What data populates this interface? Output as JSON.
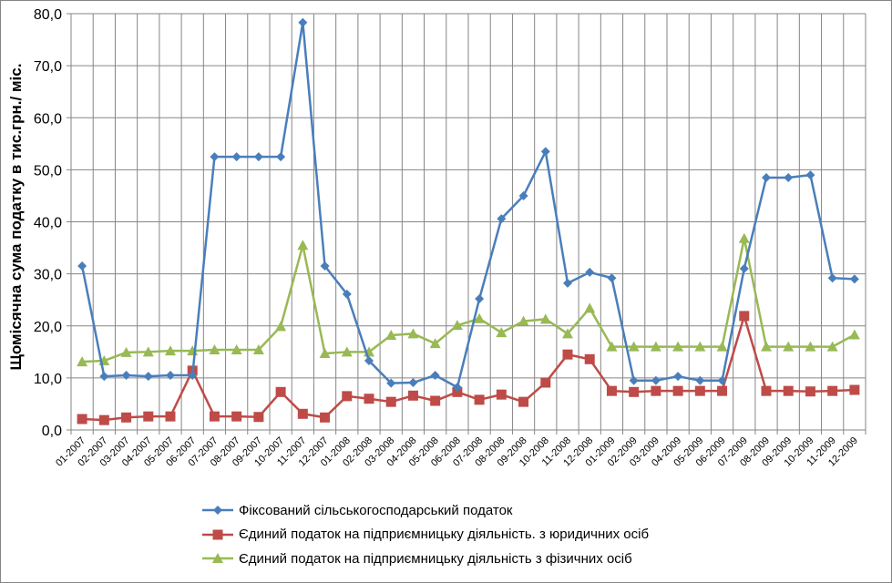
{
  "chart_data": {
    "type": "line",
    "title": "",
    "xlabel": "",
    "ylabel": "Щомісячна сума податку  в тис.грн./ міс.",
    "ylim": [
      0,
      80
    ],
    "yticks": [
      "0,0",
      "10,0",
      "20,0",
      "30,0",
      "40,0",
      "50,0",
      "60,0",
      "70,0",
      "80,0"
    ],
    "grid": true,
    "legend_position": "bottom",
    "categories": [
      "01-2007",
      "02-2007",
      "03-2007",
      "04-2007",
      "05-2007",
      "06-2007",
      "07-2007",
      "08-2007",
      "09-2007",
      "10-2007",
      "11-2007",
      "12-2007",
      "01-2008",
      "02-2008",
      "03-2008",
      "04-2008",
      "05-2008",
      "06-2008",
      "07-2008",
      "08-2008",
      "09-2008",
      "10-2008",
      "11-2008",
      "12-2008",
      "01-2009",
      "02-2009",
      "03-2009",
      "04-2009",
      "05-2009",
      "06-2009",
      "07-2009",
      "08-2009",
      "09-2009",
      "10-2009",
      "11-2009",
      "12-2009"
    ],
    "series": [
      {
        "name": "Фіксований сільськогосподарський податок",
        "color": "#4A7EBB",
        "marker": "diamond",
        "values": [
          31.5,
          10.3,
          10.5,
          10.3,
          10.5,
          10.5,
          52.5,
          52.5,
          52.5,
          52.5,
          78.3,
          31.5,
          26.1,
          13.3,
          9.0,
          9.1,
          10.5,
          8.2,
          25.2,
          40.6,
          45.0,
          53.5,
          28.2,
          30.3,
          29.2,
          9.5,
          9.5,
          10.3,
          9.5,
          9.5,
          31.0,
          48.5,
          48.5,
          49.0,
          29.2,
          29.0
        ]
      },
      {
        "name": "Єдиний податок на підприємницьку діяльність. з юридичних осіб",
        "color": "#BE4B48",
        "marker": "square",
        "values": [
          2.1,
          1.9,
          2.4,
          2.6,
          2.6,
          11.4,
          2.6,
          2.6,
          2.5,
          7.3,
          3.1,
          2.4,
          6.5,
          6.0,
          5.4,
          6.6,
          5.6,
          7.3,
          5.8,
          6.8,
          5.4,
          9.1,
          14.5,
          13.6,
          7.5,
          7.3,
          7.5,
          7.5,
          7.5,
          7.5,
          21.9,
          7.5,
          7.5,
          7.4,
          7.5,
          7.7
        ]
      },
      {
        "name": "Єдиний податок на підприємницьку діяльність з фізичних осіб",
        "color": "#98B954",
        "marker": "triangle",
        "values": [
          13.1,
          13.3,
          14.9,
          15.0,
          15.2,
          15.2,
          15.4,
          15.4,
          15.4,
          19.9,
          35.5,
          14.7,
          15.0,
          15.0,
          18.2,
          18.5,
          16.6,
          20.1,
          21.4,
          18.7,
          20.9,
          21.3,
          18.5,
          23.4,
          16.0,
          16.0,
          16.0,
          16.0,
          16.0,
          16.0,
          36.8,
          16.0,
          16.0,
          16.0,
          16.0,
          18.3
        ]
      }
    ]
  }
}
